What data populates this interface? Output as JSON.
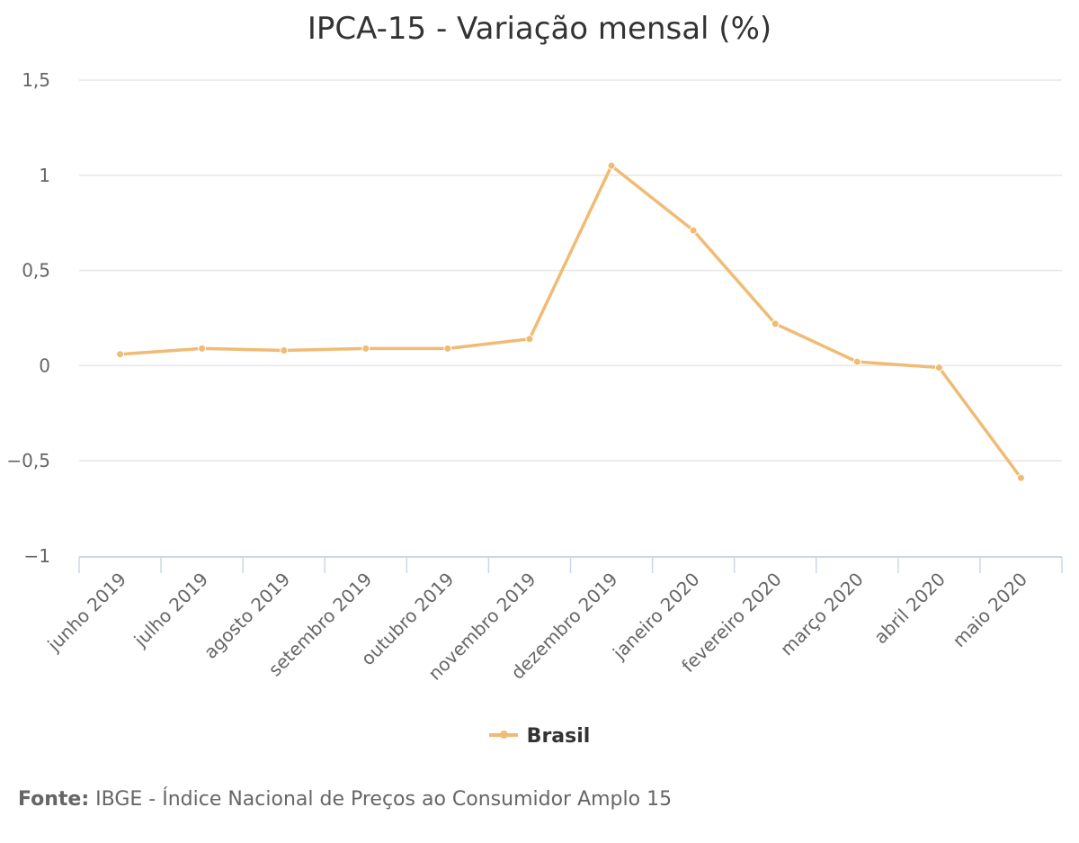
{
  "chart_data": {
    "type": "line",
    "title": "IPCA-15 - Variação mensal (%)",
    "xlabel": "",
    "ylabel": "",
    "categories": [
      "junho 2019",
      "julho 2019",
      "agosto 2019",
      "setembro 2019",
      "outubro 2019",
      "novembro 2019",
      "dezembro 2019",
      "janeiro 2020",
      "fevereiro 2020",
      "março 2020",
      "abril 2020",
      "maio 2020"
    ],
    "series": [
      {
        "name": "Brasil",
        "color": "#f0bb74",
        "values": [
          0.06,
          0.09,
          0.08,
          0.09,
          0.09,
          0.14,
          1.05,
          0.71,
          0.22,
          0.02,
          -0.01,
          -0.59
        ]
      }
    ],
    "ylim": [
      -1,
      1.5
    ],
    "yticks": [
      1.5,
      1,
      0.5,
      0,
      -0.5,
      -1
    ],
    "ytick_labels": [
      "1,5",
      "1",
      "0,5",
      "0",
      "−0,5",
      "−1"
    ],
    "grid": true,
    "legend_position": "bottom-center"
  },
  "credits": {
    "lead": "Fonte:",
    "text": " IBGE - Índice Nacional de Preços ao Consumidor Amplo 15"
  },
  "colors": {
    "series": "#f0bb74",
    "grid": "#e6e6e6",
    "axis": "#ccd6eb",
    "label": "#666666"
  }
}
